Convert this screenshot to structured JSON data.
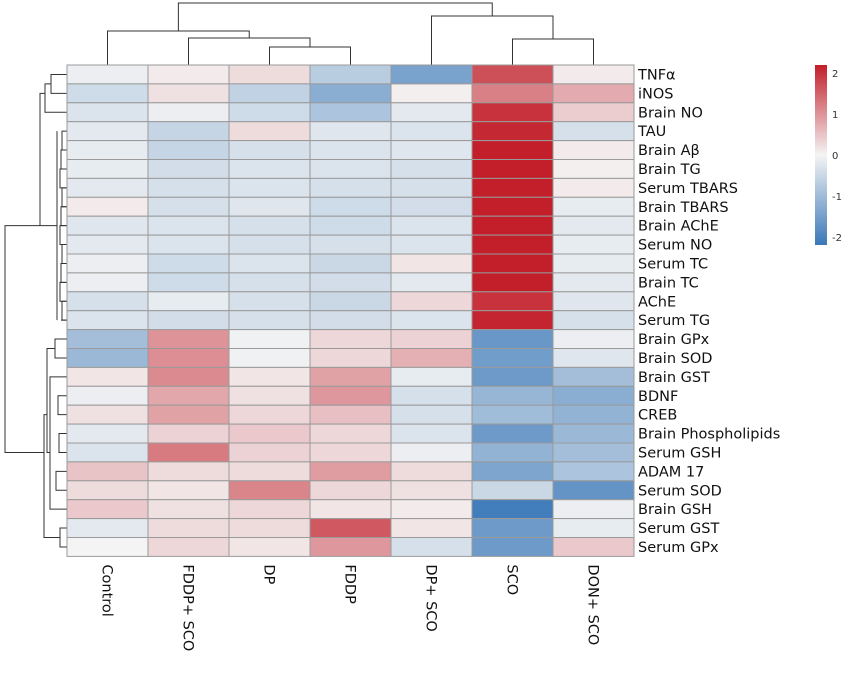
{
  "chart_data": {
    "type": "heatmap",
    "title": "",
    "xlabel": "",
    "ylabel": "",
    "columns": [
      "Control",
      "FDDP+ SCO",
      "DP",
      "FDDP",
      "DP+ SCO",
      "SCO",
      "DON+ SCO"
    ],
    "rows": [
      "TNFα",
      "iNOS",
      "Brain NO",
      "TAU",
      "Brain Aβ",
      "Brain TG",
      "Serum TBARS",
      "Brain TBARS",
      "Brain AChE",
      "Serum NO",
      "Serum TC",
      "Brain TC",
      "AChE",
      "Serum TG",
      "Brain GPx",
      "Brain SOD",
      "Brain GST",
      "BDNF",
      "CREB",
      "Brain Phospholipids",
      "Serum GSH",
      "ADAM 17",
      "Serum SOD",
      "Brain GSH",
      "Serum GST",
      "Serum GPx"
    ],
    "values": [
      [
        -0.1,
        0.1,
        0.25,
        -0.7,
        -1.45,
        1.7,
        0.1
      ],
      [
        -0.45,
        0.2,
        -0.6,
        -1.25,
        0.05,
        1.2,
        0.75
      ],
      [
        -0.3,
        -0.1,
        -0.45,
        -0.85,
        -0.2,
        2.0,
        0.4
      ],
      [
        -0.2,
        -0.55,
        0.25,
        -0.25,
        -0.3,
        2.1,
        -0.35
      ],
      [
        -0.15,
        -0.55,
        -0.35,
        -0.3,
        -0.25,
        2.2,
        0.1
      ],
      [
        -0.15,
        -0.4,
        -0.3,
        -0.3,
        -0.35,
        2.2,
        0.05
      ],
      [
        -0.2,
        -0.35,
        -0.3,
        -0.35,
        -0.35,
        2.2,
        0.1
      ],
      [
        0.1,
        -0.35,
        -0.25,
        -0.45,
        -0.4,
        2.2,
        -0.15
      ],
      [
        -0.25,
        -0.3,
        -0.35,
        -0.45,
        -0.3,
        2.25,
        -0.2
      ],
      [
        -0.2,
        -0.3,
        -0.35,
        -0.35,
        -0.3,
        2.25,
        -0.15
      ],
      [
        -0.1,
        -0.45,
        -0.3,
        -0.5,
        0.15,
        2.2,
        -0.15
      ],
      [
        -0.1,
        -0.45,
        -0.35,
        -0.4,
        -0.2,
        2.2,
        -0.2
      ],
      [
        -0.35,
        -0.15,
        -0.35,
        -0.5,
        0.3,
        2.0,
        -0.25
      ],
      [
        -0.3,
        -0.4,
        -0.35,
        -0.4,
        -0.3,
        2.15,
        -0.35
      ]
    ],
    "values_continued": [
      [
        -0.95,
        1.0,
        -0.05,
        0.3,
        0.35,
        -1.65,
        -0.1
      ],
      [
        -1.05,
        1.05,
        -0.05,
        0.3,
        0.7,
        -1.55,
        -0.25
      ],
      [
        0.15,
        1.1,
        0.15,
        0.85,
        -0.15,
        -1.6,
        -0.95
      ],
      [
        -0.1,
        0.8,
        0.2,
        0.95,
        -0.35,
        -1.1,
        -1.25
      ],
      [
        0.2,
        0.85,
        0.3,
        0.55,
        -0.35,
        -1.0,
        -1.15
      ],
      [
        -0.2,
        0.35,
        0.45,
        0.3,
        -0.3,
        -1.6,
        -1.05
      ],
      [
        -0.3,
        1.25,
        0.35,
        0.3,
        -0.1,
        -1.15,
        -0.95
      ],
      [
        0.5,
        0.25,
        0.25,
        0.9,
        0.25,
        -1.4,
        -0.85
      ],
      [
        0.25,
        0.15,
        1.15,
        0.3,
        0.2,
        -0.5,
        -1.7
      ],
      [
        0.45,
        0.2,
        0.3,
        0.15,
        0.1,
        -2.1,
        -0.1
      ],
      [
        -0.2,
        0.25,
        0.25,
        1.6,
        0.15,
        -1.6,
        -0.15
      ],
      [
        0.0,
        0.3,
        0.15,
        0.95,
        -0.35,
        -1.6,
        0.45
      ]
    ],
    "color_scale": {
      "min": -2.2,
      "max": 2.2,
      "low_color": "#3a78b8",
      "mid_color": "#f4f4f4",
      "high_color": "#c21f2a"
    },
    "legend_ticks": [
      "2",
      "1",
      "0",
      "-1",
      "-2"
    ],
    "legend_tick_values": [
      2,
      1,
      0,
      -1,
      -2
    ],
    "grid": false,
    "legend_position": "top-right",
    "row_dendrogram": true,
    "column_dendrogram": true
  }
}
